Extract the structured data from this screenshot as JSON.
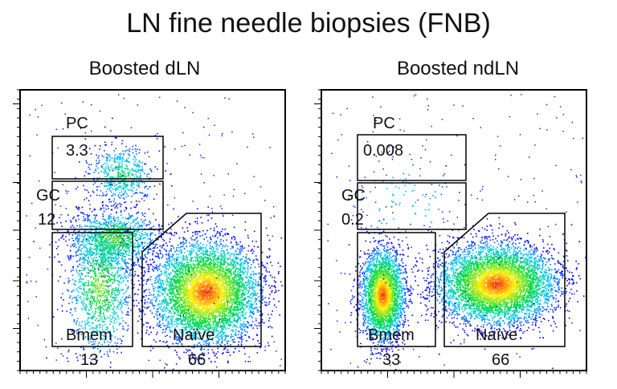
{
  "chart_data": [
    {
      "type": "scatter",
      "title": "LN fine needle biopsies (FNB)",
      "subtitle": "Boosted dLN",
      "gates": [
        {
          "name": "PC",
          "value": "3.3"
        },
        {
          "name": "GC",
          "value": "12"
        },
        {
          "name": "Bmem",
          "value": "13"
        },
        {
          "name": "Naïve",
          "value": "66"
        }
      ],
      "density_clusters": [
        {
          "cx": 0.38,
          "cy": 0.3,
          "spread_x": 0.06,
          "spread_y": 0.05,
          "weight": 0.06
        },
        {
          "cx": 0.35,
          "cy": 0.53,
          "spread_x": 0.08,
          "spread_y": 0.05,
          "weight": 0.14
        },
        {
          "cx": 0.3,
          "cy": 0.7,
          "spread_x": 0.06,
          "spread_y": 0.12,
          "weight": 0.14
        },
        {
          "cx": 0.7,
          "cy": 0.72,
          "spread_x": 0.1,
          "spread_y": 0.09,
          "weight": 0.66
        }
      ]
    },
    {
      "type": "scatter",
      "subtitle": "Boosted ndLN",
      "gates": [
        {
          "name": "PC",
          "value": "0.008"
        },
        {
          "name": "GC",
          "value": "0.2"
        },
        {
          "name": "Bmem",
          "value": "33"
        },
        {
          "name": "Naïve",
          "value": "66"
        }
      ],
      "density_clusters": [
        {
          "cx": 0.23,
          "cy": 0.73,
          "spread_x": 0.04,
          "spread_y": 0.08,
          "weight": 0.33
        },
        {
          "cx": 0.66,
          "cy": 0.69,
          "spread_x": 0.11,
          "spread_y": 0.07,
          "weight": 0.66
        },
        {
          "cx": 0.3,
          "cy": 0.4,
          "spread_x": 0.1,
          "spread_y": 0.08,
          "weight": 0.01
        }
      ]
    }
  ]
}
